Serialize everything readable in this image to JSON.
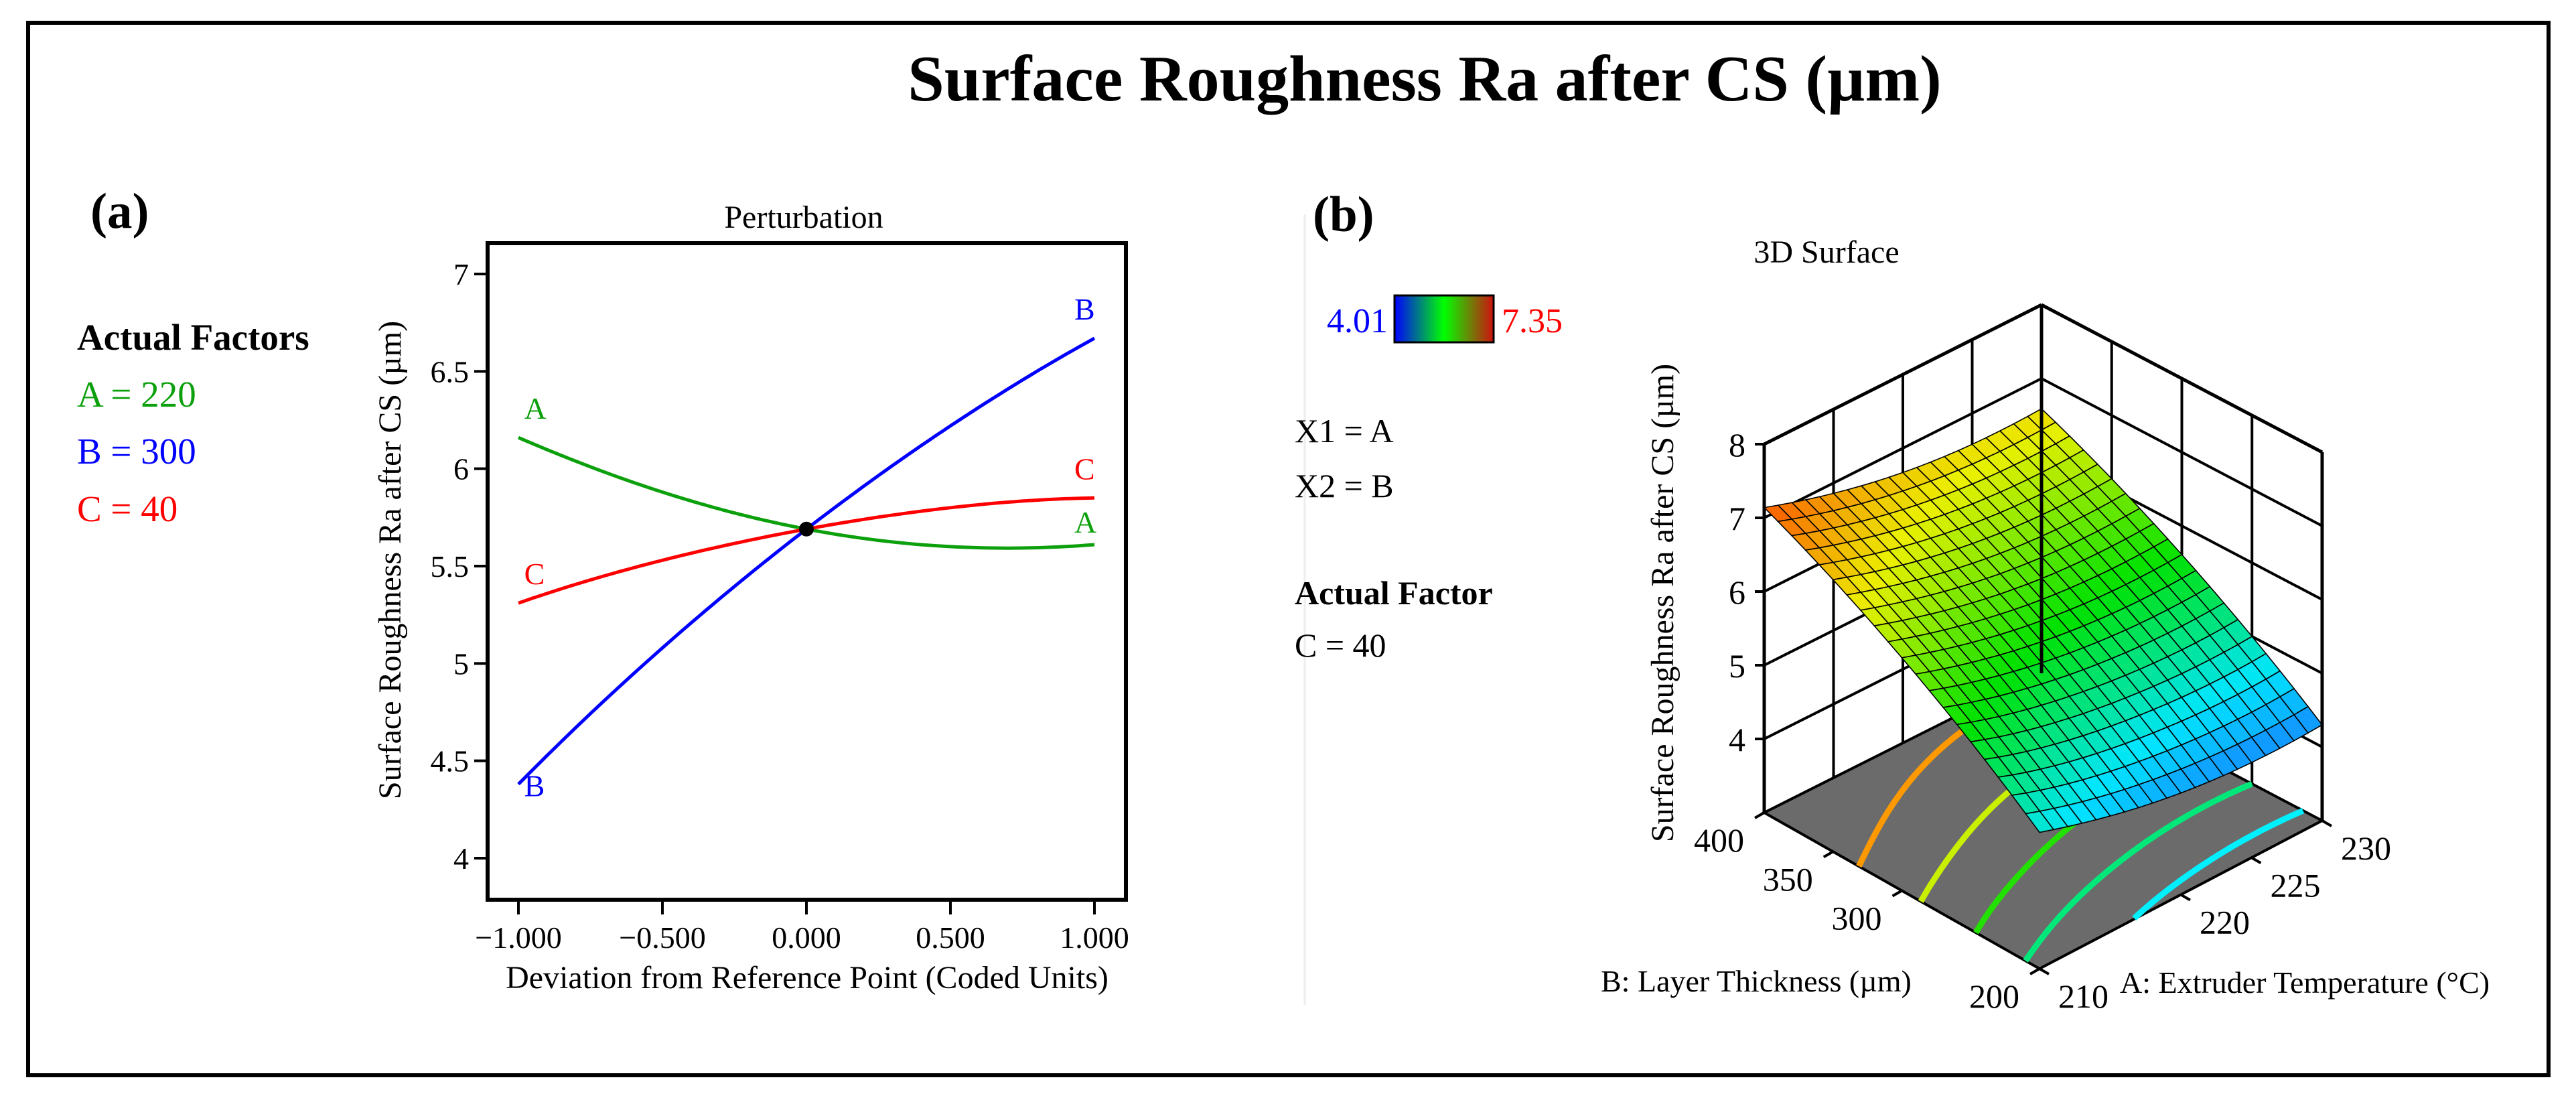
{
  "figure_title": "Surface Roughness Ra after CS (µm)",
  "panel_a": {
    "label": "(a)",
    "factors_heading": "Actual Factors",
    "factors": [
      {
        "text": "A = 220",
        "color": "#0ca00c"
      },
      {
        "text": "B = 300",
        "color": "#0000ff"
      },
      {
        "text": "C = 40",
        "color": "#ff0000"
      }
    ]
  },
  "panel_b": {
    "label": "(b)",
    "colorbar": {
      "min_label": "4.01",
      "max_label": "7.35",
      "min_color": "#0000ff",
      "mid_color": "#00ff00",
      "max_color": "#d01010"
    },
    "x1": "X1 = A",
    "x2": "X2 = B",
    "factor_heading": "Actual Factor",
    "factor": "C = 40"
  },
  "chart_data": [
    {
      "type": "line",
      "title": "Perturbation",
      "xlabel": "Deviation from Reference Point (Coded Units)",
      "ylabel": "Surface Roughness Ra after CS (µm)",
      "xlim": [
        -1.1,
        1.1
      ],
      "ylim": [
        3.85,
        7.15
      ],
      "x_ticks": [
        -1,
        -0.5,
        0,
        0.5,
        1
      ],
      "x_tick_labels": [
        "−1.000",
        "−0.500",
        "0.000",
        "0.500",
        "1.000"
      ],
      "y_ticks": [
        4,
        4.5,
        5,
        5.5,
        6,
        6.5,
        7
      ],
      "y_tick_labels": [
        "4",
        "4.5",
        "5",
        "5.5",
        "6",
        "6.5",
        "7"
      ],
      "x": [
        -1,
        -0.5,
        0,
        0.5,
        1
      ],
      "series": [
        {
          "name": "A",
          "color": "#0ca00c",
          "values": [
            6.16,
            5.88,
            5.69,
            5.6,
            5.61
          ]
        },
        {
          "name": "B",
          "color": "#0000ff",
          "values": [
            4.38,
            5.08,
            5.69,
            6.22,
            6.67
          ]
        },
        {
          "name": "C",
          "color": "#ff0000",
          "values": [
            5.31,
            5.53,
            5.69,
            5.8,
            5.85
          ]
        }
      ],
      "reference_point": {
        "x": 0,
        "y": 5.69
      },
      "grid": false
    },
    {
      "type": "surface",
      "title": "3D Surface",
      "xlabel": "A: Extruder Temperature (°C)",
      "ylabel": "B: Layer Thickness  (µm)",
      "zlabel": "Surface Roughness Ra after CS (µm)",
      "x_values": [
        210,
        215,
        220,
        225,
        230
      ],
      "y_values": [
        200,
        250,
        300,
        350,
        400
      ],
      "x_tick_labels": [
        "210",
        "220",
        "225",
        "230"
      ],
      "x_tick_values": [
        210,
        220,
        225,
        230
      ],
      "y_tick_labels": [
        "200",
        "300",
        "350",
        "400"
      ],
      "y_tick_values": [
        200,
        300,
        350,
        400
      ],
      "z_tick_labels": [
        "4",
        "5",
        "6",
        "7",
        "8"
      ],
      "z_tick_values": [
        4,
        5,
        6,
        7,
        8
      ],
      "zlim": [
        3,
        8
      ],
      "z_grid": [
        [
          4.85,
          4.57,
          4.38,
          4.29,
          4.3
        ],
        [
          5.55,
          5.26,
          5.08,
          4.99,
          5.0
        ],
        [
          6.16,
          5.88,
          5.69,
          5.6,
          5.61
        ],
        [
          6.69,
          6.41,
          6.22,
          6.13,
          6.14
        ],
        [
          7.14,
          6.86,
          6.67,
          6.58,
          6.59
        ]
      ],
      "color_range": [
        4.01,
        7.35
      ],
      "contour_levels": [
        4.5,
        5.0,
        5.5,
        6.0,
        6.5
      ],
      "contour_colors": [
        "#00f0ff",
        "#00e87a",
        "#22e000",
        "#c8f000",
        "#ff9900"
      ]
    }
  ]
}
